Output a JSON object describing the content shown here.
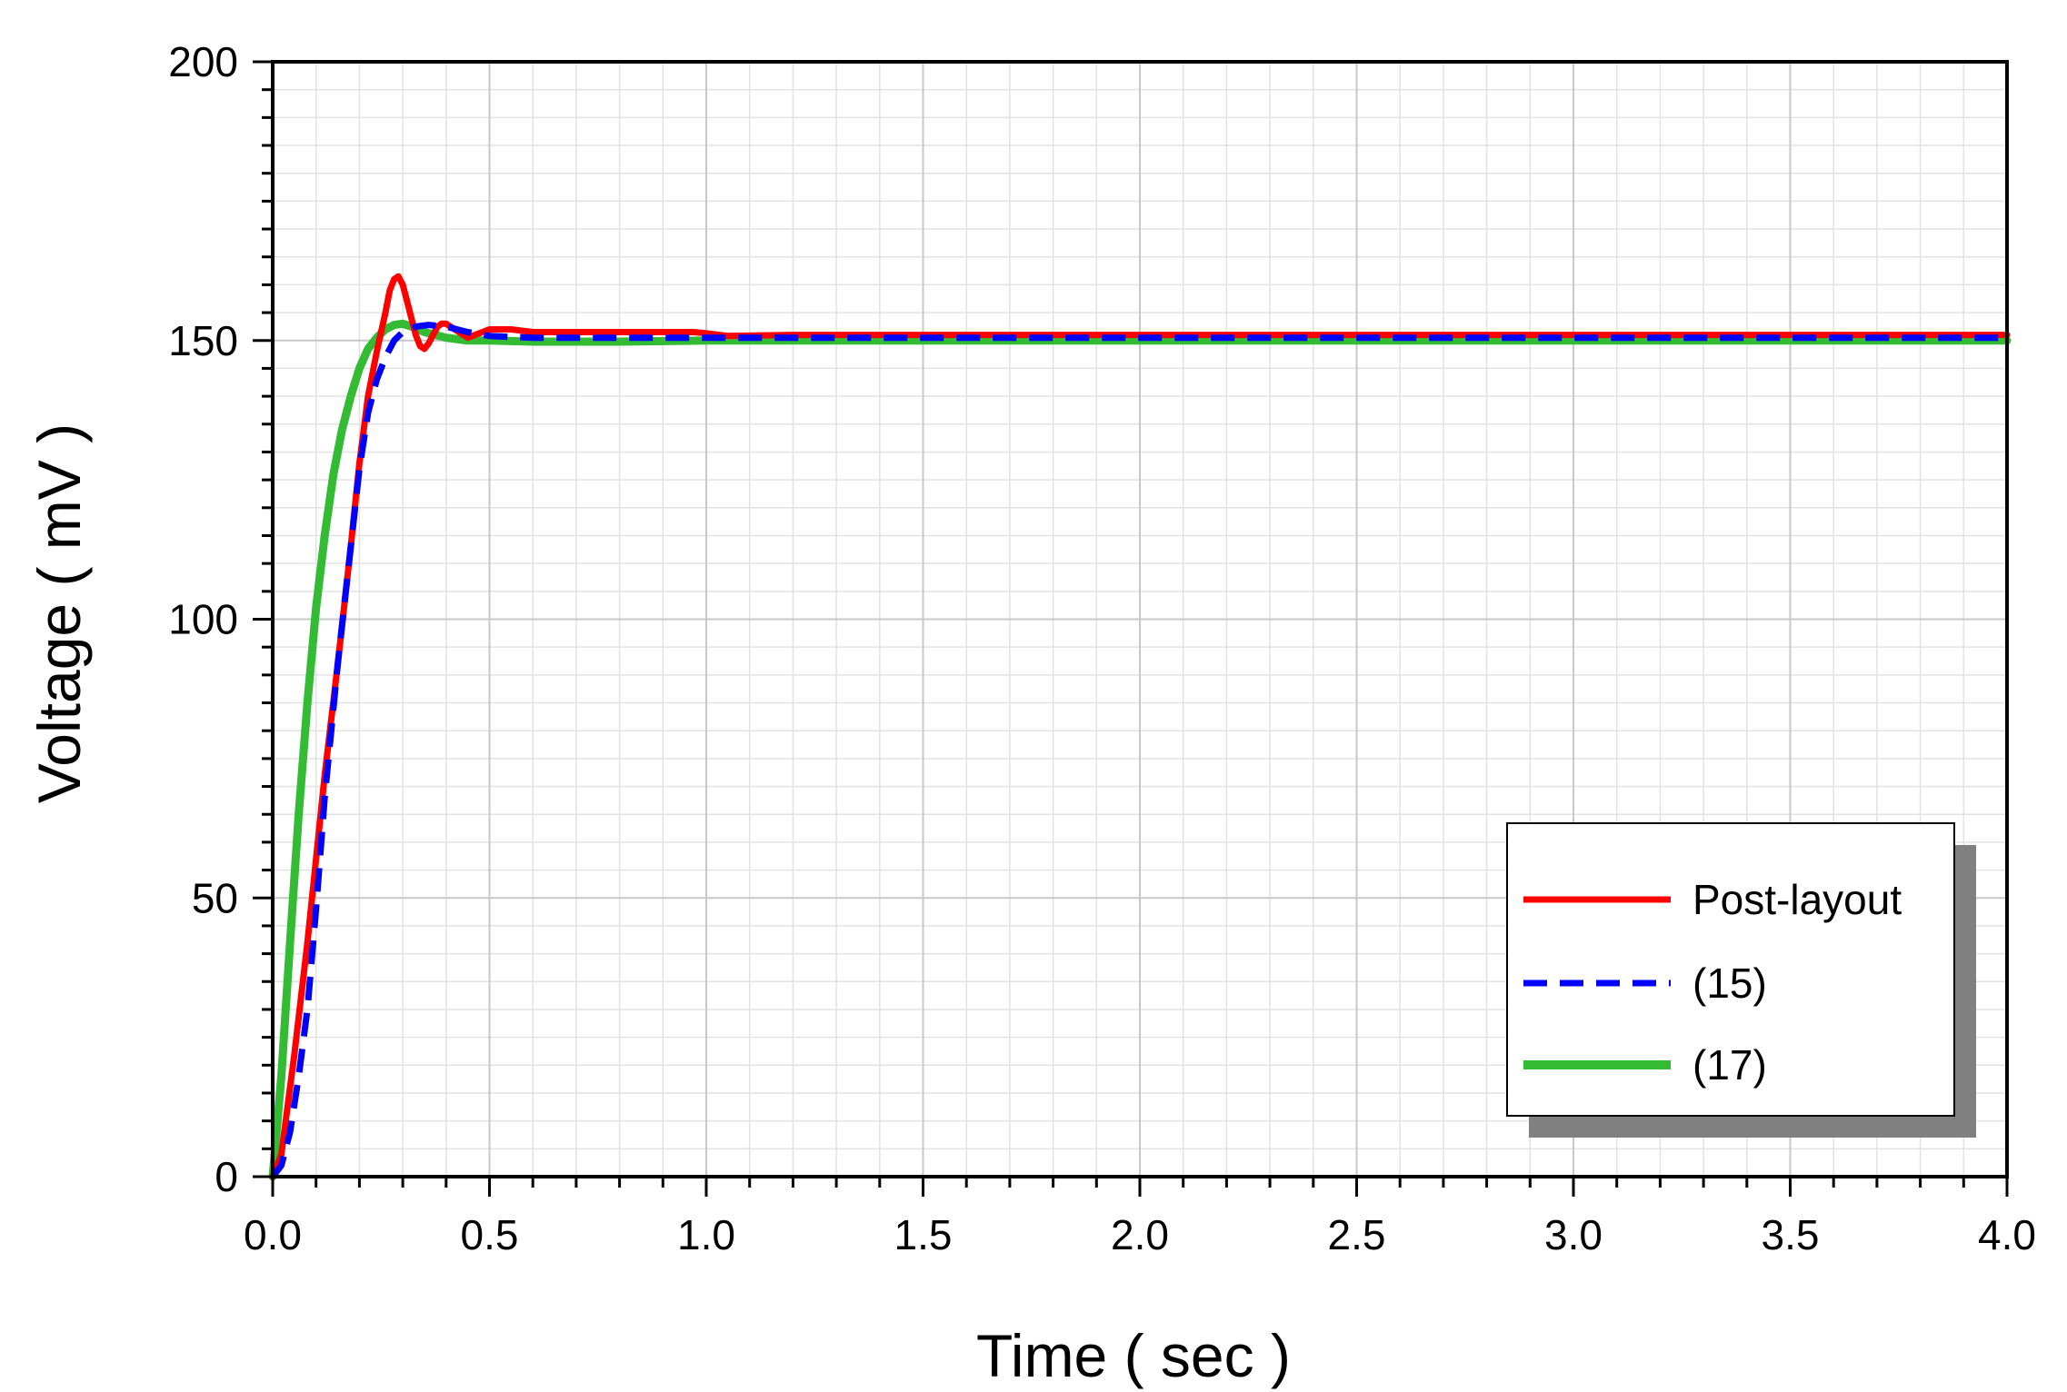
{
  "chart_data": {
    "type": "line",
    "xlabel": "Time ( sec )",
    "ylabel": "Voltage ( mV )",
    "xlim": [
      0,
      4
    ],
    "ylim": [
      0,
      200
    ],
    "x_ticks": [
      "0.0",
      "0.5",
      "1.0",
      "1.5",
      "2.0",
      "2.5",
      "3.0",
      "3.5",
      "4.0"
    ],
    "y_ticks": [
      "0",
      "50",
      "100",
      "150",
      "200"
    ],
    "grid": true,
    "legend_position": "bottom-right",
    "series": [
      {
        "name": "Post-layout",
        "color": "#ff0000",
        "style": "solid",
        "x": [
          0,
          0.02,
          0.05,
          0.08,
          0.1,
          0.12,
          0.15,
          0.18,
          0.2,
          0.22,
          0.24,
          0.26,
          0.27,
          0.28,
          0.29,
          0.3,
          0.31,
          0.32,
          0.33,
          0.34,
          0.35,
          0.36,
          0.37,
          0.38,
          0.39,
          0.4,
          0.42,
          0.45,
          0.5,
          0.55,
          0.6,
          0.7,
          0.8,
          0.9,
          0.97,
          1.0,
          1.05,
          1.2,
          1.5,
          2.0,
          3.0,
          4.0
        ],
        "values": [
          0,
          4,
          22,
          42,
          57,
          72,
          92,
          113,
          128,
          140,
          148,
          155,
          159,
          161,
          161.5,
          160,
          157,
          154,
          151,
          149,
          148.5,
          149.5,
          151,
          152.5,
          153,
          153,
          152,
          150.5,
          152,
          152,
          151.5,
          151.5,
          151.5,
          151.5,
          151.5,
          151.3,
          150.8,
          151,
          151,
          151,
          151,
          151
        ]
      },
      {
        "name": "(15)",
        "color": "#0000ff",
        "style": "dashed",
        "x": [
          0,
          0.02,
          0.04,
          0.06,
          0.08,
          0.1,
          0.12,
          0.15,
          0.18,
          0.2,
          0.22,
          0.24,
          0.26,
          0.28,
          0.3,
          0.33,
          0.36,
          0.4,
          0.45,
          0.5,
          0.6,
          0.8,
          1.0,
          1.5,
          2.0,
          3.0,
          4.0
        ],
        "values": [
          0,
          2,
          8,
          18,
          30,
          48,
          68,
          92,
          113,
          127,
          137,
          143,
          147,
          150,
          151.5,
          152.5,
          152.8,
          152.5,
          151.5,
          150.8,
          150.5,
          150.5,
          150.5,
          150.5,
          150.5,
          150.5,
          150.5
        ]
      },
      {
        "name": "(17)",
        "color": "#33bb33",
        "style": "solid",
        "x": [
          0,
          0.02,
          0.04,
          0.06,
          0.08,
          0.1,
          0.12,
          0.14,
          0.16,
          0.18,
          0.2,
          0.22,
          0.24,
          0.26,
          0.28,
          0.3,
          0.32,
          0.35,
          0.4,
          0.45,
          0.5,
          0.6,
          0.7,
          0.8,
          1.0,
          1.5,
          2.0,
          3.0,
          4.0
        ],
        "values": [
          0,
          18,
          42,
          65,
          85,
          102,
          115,
          126,
          134,
          140,
          145,
          148.5,
          150.5,
          152,
          152.8,
          153,
          152.5,
          151.5,
          150.5,
          150,
          150,
          149.8,
          149.8,
          149.8,
          150,
          150,
          150,
          150,
          150
        ]
      }
    ]
  }
}
